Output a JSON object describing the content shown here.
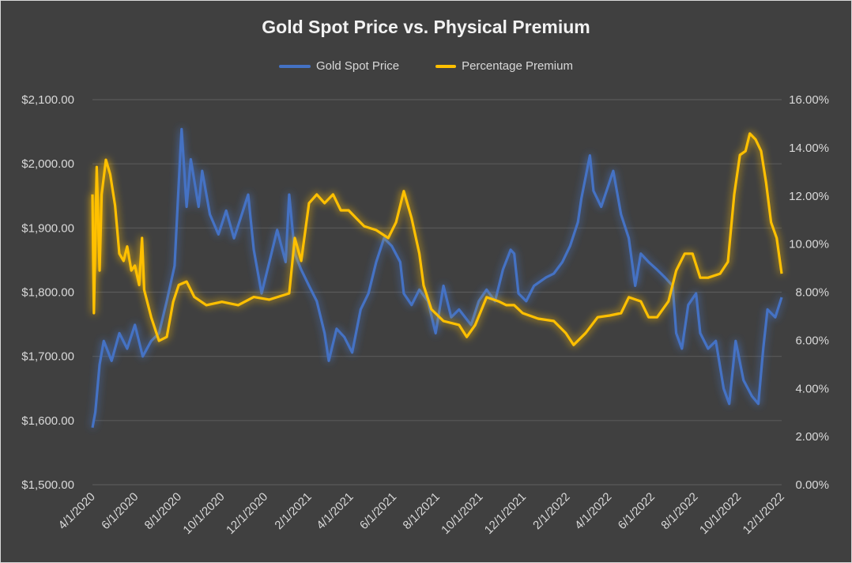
{
  "chart_data": {
    "type": "line",
    "title": "Gold Spot Price vs. Physical Premium",
    "x_range": [
      "2020-04-01",
      "2022-12-01"
    ],
    "x_tick_labels": [
      "4/1/2020",
      "6/1/2020",
      "8/1/2020",
      "10/1/2020",
      "12/1/2020",
      "2/1/2021",
      "4/1/2021",
      "6/1/2021",
      "8/1/2021",
      "10/1/2021",
      "12/1/2021",
      "2/1/2022",
      "4/1/2022",
      "6/1/2022",
      "8/1/2022",
      "10/1/2022",
      "12/1/2022"
    ],
    "x_tick_dates": [
      "2020-04-01",
      "2020-06-01",
      "2020-08-01",
      "2020-10-01",
      "2020-12-01",
      "2021-02-01",
      "2021-04-01",
      "2021-06-01",
      "2021-08-01",
      "2021-10-01",
      "2021-12-01",
      "2022-02-01",
      "2022-04-01",
      "2022-06-01",
      "2022-08-01",
      "2022-10-01",
      "2022-12-01"
    ],
    "y_left": {
      "range": [
        1500,
        2100
      ],
      "tick_labels": [
        "$1,500.00",
        "$1,600.00",
        "$1,700.00",
        "$1,800.00",
        "$1,900.00",
        "$2,000.00",
        "$2,100.00"
      ]
    },
    "y_right": {
      "range": [
        0,
        16
      ],
      "tick_labels": [
        "0.00%",
        "2.00%",
        "4.00%",
        "6.00%",
        "8.00%",
        "10.00%",
        "12.00%",
        "14.00%",
        "16.00%"
      ]
    },
    "grid": "horizontal",
    "legend_position": "top",
    "series": [
      {
        "name": "Gold Spot Price",
        "axis": "left",
        "color": "#4472C4",
        "x": [
          "2020-04-01",
          "2020-04-05",
          "2020-04-11",
          "2020-04-17",
          "2020-04-28",
          "2020-05-09",
          "2020-05-20",
          "2020-05-31",
          "2020-06-11",
          "2020-06-23",
          "2020-07-04",
          "2020-07-15",
          "2020-07-26",
          "2020-08-01",
          "2020-08-05",
          "2020-08-12",
          "2020-08-18",
          "2020-08-29",
          "2020-09-03",
          "2020-09-14",
          "2020-09-26",
          "2020-10-07",
          "2020-10-18",
          "2020-10-29",
          "2020-11-07",
          "2020-11-15",
          "2020-11-26",
          "2020-12-07",
          "2020-12-18",
          "2020-12-30",
          "2021-01-04",
          "2021-01-12",
          "2021-01-21",
          "2021-02-01",
          "2021-02-12",
          "2021-02-23",
          "2021-03-01",
          "2021-03-12",
          "2021-03-23",
          "2021-04-03",
          "2021-04-15",
          "2021-04-26",
          "2021-05-07",
          "2021-05-18",
          "2021-05-29",
          "2021-06-10",
          "2021-06-15",
          "2021-06-26",
          "2021-07-07",
          "2021-07-19",
          "2021-07-30",
          "2021-08-10",
          "2021-08-21",
          "2021-09-01",
          "2021-09-18",
          "2021-09-29",
          "2021-10-10",
          "2021-10-22",
          "2021-11-02",
          "2021-11-13",
          "2021-11-18",
          "2021-11-24",
          "2021-12-05",
          "2021-12-16",
          "2022-01-02",
          "2022-01-13",
          "2022-01-25",
          "2022-02-05",
          "2022-02-16",
          "2022-02-21",
          "2022-03-05",
          "2022-03-10",
          "2022-03-21",
          "2022-04-07",
          "2022-04-18",
          "2022-04-29",
          "2022-05-08",
          "2022-05-16",
          "2022-05-27",
          "2022-06-08",
          "2022-06-19",
          "2022-06-30",
          "2022-07-05",
          "2022-07-13",
          "2022-07-22",
          "2022-08-02",
          "2022-08-08",
          "2022-08-19",
          "2022-08-30",
          "2022-09-10",
          "2022-09-18",
          "2022-09-27",
          "2022-10-08",
          "2022-10-20",
          "2022-10-29",
          "2022-11-05",
          "2022-11-11",
          "2022-11-22",
          "2022-12-01"
        ],
        "values": [
          1589,
          1613,
          1687,
          1724,
          1693,
          1736,
          1712,
          1749,
          1700,
          1724,
          1736,
          1786,
          1841,
          1970,
          2054,
          1933,
          2007,
          1933,
          1989,
          1921,
          1890,
          1927,
          1884,
          1921,
          1952,
          1866,
          1798,
          1847,
          1897,
          1847,
          1952,
          1860,
          1835,
          1810,
          1786,
          1736,
          1693,
          1743,
          1730,
          1706,
          1773,
          1798,
          1847,
          1884,
          1872,
          1847,
          1798,
          1780,
          1804,
          1786,
          1736,
          1810,
          1761,
          1773,
          1749,
          1786,
          1804,
          1786,
          1835,
          1866,
          1860,
          1798,
          1786,
          1810,
          1823,
          1829,
          1847,
          1872,
          1909,
          1946,
          2013,
          1958,
          1933,
          1989,
          1921,
          1884,
          1810,
          1860,
          1847,
          1835,
          1823,
          1810,
          1736,
          1712,
          1780,
          1798,
          1736,
          1712,
          1724,
          1650,
          1626,
          1724,
          1663,
          1638,
          1626,
          1712,
          1773,
          1761,
          1792
        ]
      },
      {
        "name": "Percentage Premium",
        "axis": "right",
        "color": "#FFC000",
        "x": [
          "2020-04-01",
          "2020-04-03",
          "2020-04-07",
          "2020-04-11",
          "2020-04-14",
          "2020-04-20",
          "2020-04-26",
          "2020-05-03",
          "2020-05-09",
          "2020-05-15",
          "2020-05-20",
          "2020-05-26",
          "2020-05-31",
          "2020-06-06",
          "2020-06-10",
          "2020-06-13",
          "2020-06-23",
          "2020-07-04",
          "2020-07-15",
          "2020-07-24",
          "2020-08-01",
          "2020-08-12",
          "2020-08-23",
          "2020-09-09",
          "2020-10-01",
          "2020-10-24",
          "2020-11-15",
          "2020-12-07",
          "2021-01-04",
          "2021-01-12",
          "2021-01-21",
          "2021-02-01",
          "2021-02-12",
          "2021-02-23",
          "2021-03-07",
          "2021-03-18",
          "2021-03-29",
          "2021-04-09",
          "2021-04-20",
          "2021-05-07",
          "2021-05-24",
          "2021-06-04",
          "2021-06-15",
          "2021-06-26",
          "2021-07-07",
          "2021-07-13",
          "2021-07-24",
          "2021-08-10",
          "2021-09-01",
          "2021-09-12",
          "2021-09-24",
          "2021-10-10",
          "2021-10-27",
          "2021-11-07",
          "2021-11-18",
          "2021-11-30",
          "2021-12-22",
          "2022-01-13",
          "2022-01-30",
          "2022-02-10",
          "2022-02-27",
          "2022-03-16",
          "2022-04-02",
          "2022-04-18",
          "2022-04-29",
          "2022-05-16",
          "2022-05-27",
          "2022-06-08",
          "2022-06-24",
          "2022-07-05",
          "2022-07-17",
          "2022-07-28",
          "2022-08-08",
          "2022-08-19",
          "2022-09-05",
          "2022-09-16",
          "2022-09-25",
          "2022-10-03",
          "2022-10-11",
          "2022-10-17",
          "2022-10-25",
          "2022-11-02",
          "2022-11-09",
          "2022-11-16",
          "2022-11-24",
          "2022-12-01"
        ],
        "values": [
          12.06,
          7.13,
          13.2,
          8.9,
          12.06,
          13.5,
          12.9,
          11.6,
          9.6,
          9.3,
          9.9,
          8.9,
          9.1,
          8.3,
          10.25,
          8.1,
          6.96,
          5.98,
          6.14,
          7.6,
          8.3,
          8.44,
          7.8,
          7.46,
          7.6,
          7.46,
          7.8,
          7.69,
          7.95,
          10.25,
          9.3,
          11.7,
          12.06,
          11.7,
          12.06,
          11.4,
          11.4,
          11.07,
          10.74,
          10.58,
          10.25,
          10.9,
          12.2,
          11.07,
          9.6,
          8.28,
          7.29,
          6.8,
          6.64,
          6.14,
          6.64,
          7.79,
          7.62,
          7.46,
          7.46,
          7.13,
          6.9,
          6.8,
          6.3,
          5.81,
          6.3,
          6.96,
          7.03,
          7.13,
          7.79,
          7.62,
          6.96,
          6.96,
          7.62,
          8.9,
          9.6,
          9.6,
          8.6,
          8.6,
          8.77,
          9.26,
          12.06,
          13.7,
          13.86,
          14.59,
          14.35,
          13.86,
          12.55,
          10.9,
          10.25,
          8.77
        ]
      }
    ]
  }
}
